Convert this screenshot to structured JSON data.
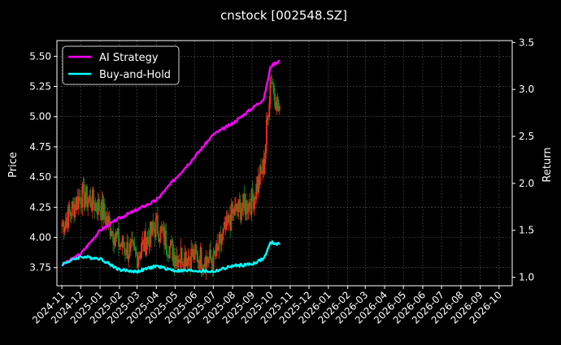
{
  "chart_data": {
    "type": "line",
    "title": "cnstock [002548.SZ]",
    "ylabel_left": "Price",
    "ylabel_right": "Return",
    "xlabel": "",
    "ylim_left": [
      3.6,
      5.63
    ],
    "ylim_right": [
      0.91,
      3.52
    ],
    "yticks_left": [
      "3.75",
      "4.00",
      "4.25",
      "4.50",
      "4.75",
      "5.00",
      "5.25",
      "5.50"
    ],
    "yticks_right": [
      "1.0",
      "1.5",
      "2.0",
      "2.5",
      "3.0",
      "3.5"
    ],
    "xticks": [
      "2024-11",
      "2024-12",
      "2025-01",
      "2025-02",
      "2025-03",
      "2025-04",
      "2025-05",
      "2025-06",
      "2025-07",
      "2025-08",
      "2025-09",
      "2025-10",
      "2025-11",
      "2025-12",
      "2026-01",
      "2026-02",
      "2026-03",
      "2026-04",
      "2026-05",
      "2026-06",
      "2026-07",
      "2026-08",
      "2026-09",
      "2026-10"
    ],
    "grid": true,
    "legend_position": "top-left",
    "colors": {
      "up": "#ff2a1a",
      "down": "#1f8a1f",
      "ai": "#ff00ff",
      "bh": "#00ffff"
    },
    "series": [
      {
        "name": "AI Strategy",
        "x": [
          "2024-11",
          "2024-12",
          "2025-01",
          "2025-02",
          "2025-03",
          "2025-04",
          "2025-05",
          "2025-06",
          "2025-07",
          "2025-08",
          "2025-09",
          "2025-09-20",
          "2025-10",
          "2025-10-15"
        ],
        "values": [
          1.13,
          1.25,
          1.5,
          1.63,
          1.72,
          1.82,
          2.05,
          2.28,
          2.52,
          2.64,
          2.8,
          2.9,
          3.25,
          3.31
        ]
      },
      {
        "name": "Buy-and-Hold",
        "x": [
          "2024-11",
          "2024-12",
          "2025-01",
          "2025-02",
          "2025-03",
          "2025-04",
          "2025-05",
          "2025-06",
          "2025-07",
          "2025-08",
          "2025-09",
          "2025-09-20",
          "2025-10",
          "2025-10-15"
        ],
        "values": [
          1.14,
          1.22,
          1.2,
          1.08,
          1.06,
          1.12,
          1.07,
          1.07,
          1.06,
          1.12,
          1.14,
          1.2,
          1.37,
          1.35
        ]
      },
      {
        "name": "Price",
        "x": [
          "2024-11",
          "2024-12",
          "2025-01",
          "2025-02",
          "2025-03",
          "2025-04",
          "2025-05",
          "2025-06",
          "2025-07",
          "2025-08",
          "2025-09",
          "2025-09-20",
          "2025-10",
          "2025-10-15"
        ],
        "values": [
          4.1,
          4.35,
          4.25,
          3.95,
          3.85,
          4.1,
          3.85,
          3.85,
          3.8,
          4.2,
          4.3,
          4.6,
          5.35,
          5.0
        ]
      }
    ]
  }
}
